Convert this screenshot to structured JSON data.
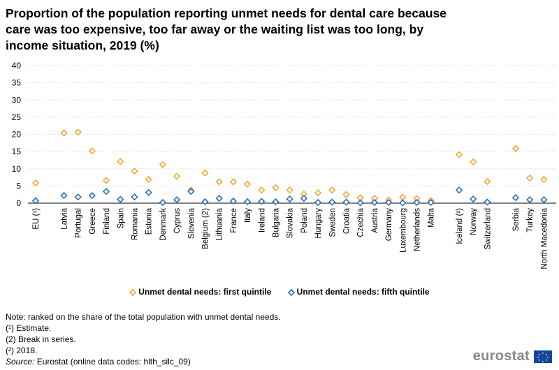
{
  "title": "Proportion of the population reporting unmet needs for dental care because care was too expensive, too far away or the waiting list was too long, by income situation, 2019 (%)",
  "chart_data": {
    "type": "scatter",
    "title": "Proportion of the population reporting unmet needs for dental care because care was too expensive, too far away or the waiting list was too long, by income situation, 2019 (%)",
    "xlabel": "",
    "ylabel": "",
    "ylim": [
      0,
      40
    ],
    "yticks": [
      0,
      5,
      10,
      15,
      20,
      25,
      30,
      35,
      40
    ],
    "grid": true,
    "legend_position": "bottom",
    "categories": [
      "EU (¹)",
      "Latvia",
      "Portugal",
      "Greece",
      "Finland",
      "Spain",
      "Romania",
      "Estonia",
      "Denmark",
      "Cyprus",
      "Slovenia",
      "Belgium (2)",
      "Lithuania",
      "France",
      "Italy",
      "Ireland",
      "Bulgaria",
      "Slovakia",
      "Poland",
      "Hungary",
      "Sweden",
      "Croatia",
      "Czechia",
      "Austria",
      "Germany",
      "Luxembourg",
      "Netherlands",
      "Malta",
      "Iceland (²)",
      "Norway",
      "Switzerland",
      "Serbia",
      "Turkey",
      "North Macedonia"
    ],
    "groups": [
      [
        0
      ],
      [
        1,
        27
      ],
      [
        28,
        30
      ],
      [
        31,
        33
      ]
    ],
    "series": [
      {
        "name": "Unmet dental needs: first quintile",
        "color": "#f0a92e",
        "values": [
          5.9,
          20.4,
          20.6,
          15.2,
          6.6,
          12.1,
          9.3,
          6.9,
          11.2,
          7.8,
          3.8,
          8.8,
          6.2,
          6.2,
          5.5,
          3.8,
          4.5,
          3.8,
          2.6,
          3.0,
          3.8,
          2.5,
          1.6,
          1.4,
          0.9,
          1.7,
          1.3,
          0.7,
          14.1,
          12.0,
          6.3,
          15.9,
          7.3,
          6.9
        ]
      },
      {
        "name": "Unmet dental needs: fifth quintile",
        "color": "#2a71b6",
        "values": [
          0.7,
          2.2,
          1.8,
          2.2,
          3.4,
          1.1,
          1.8,
          3.1,
          0.2,
          1.0,
          3.4,
          0.4,
          1.4,
          0.6,
          0.4,
          0.5,
          0.4,
          1.2,
          1.4,
          0.2,
          0.3,
          0.3,
          0.1,
          0.2,
          0.2,
          0.1,
          0.2,
          0.2,
          3.8,
          1.2,
          0.3,
          1.6,
          1.0,
          1.0
        ]
      }
    ]
  },
  "legend": {
    "first": "Unmet dental needs: first quintile",
    "fifth": "Unmet dental needs: fifth quintile"
  },
  "notes": {
    "note": "Note: ranked on the share of the total population with unmet dental needs.",
    "fn1": "(¹) Estimate.",
    "fn2": "(2) Break in series.",
    "fn3": "(²) 2018.",
    "source_label": "Source:",
    "source_text": "Eurostat (online data codes: hlth_silc_09)"
  },
  "logo": {
    "text": "eurostat"
  }
}
